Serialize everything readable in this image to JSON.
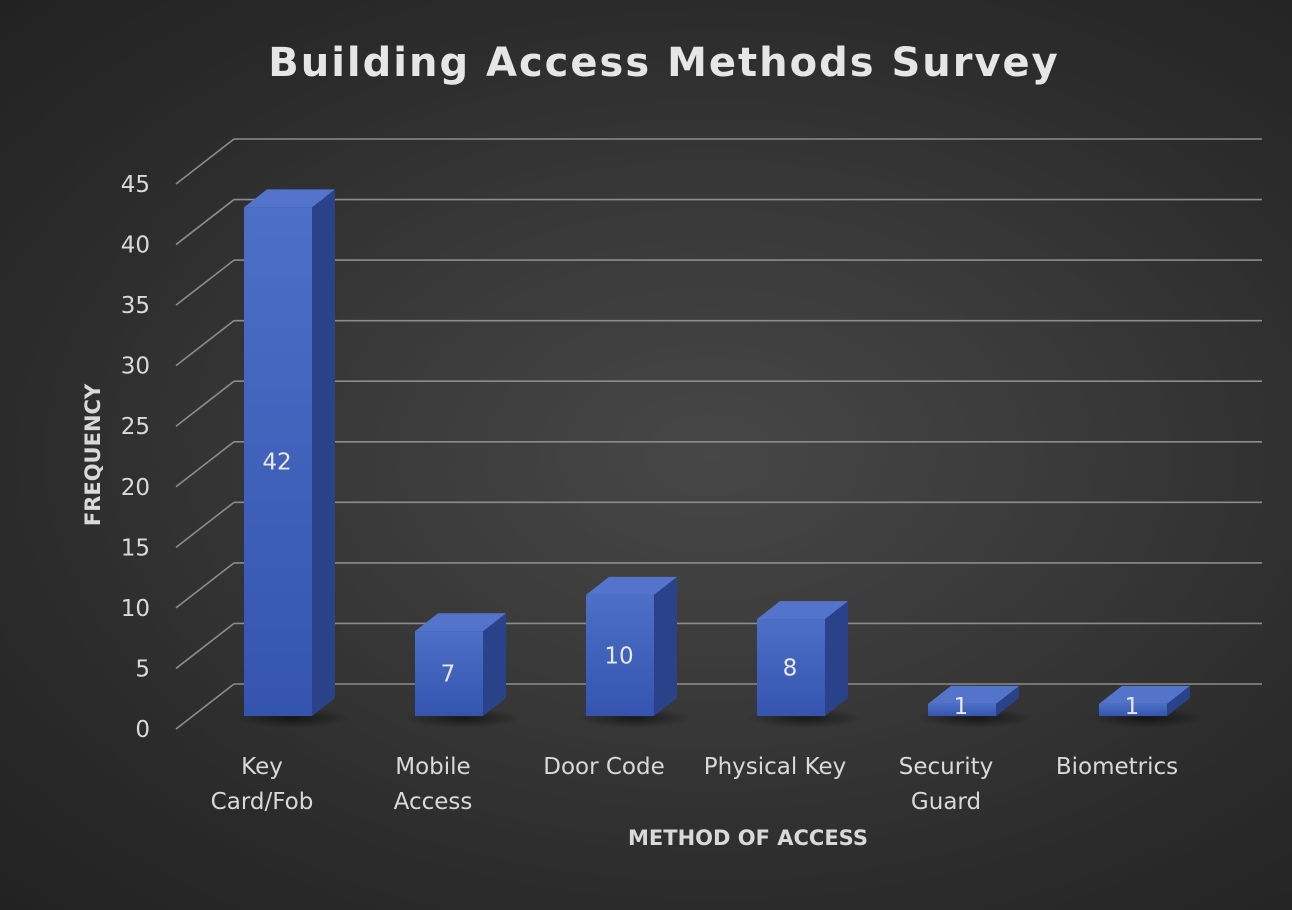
{
  "chart_data": {
    "type": "bar",
    "title": "Building Access Methods Survey",
    "xlabel": "METHOD OF ACCESS",
    "ylabel": "FREQUENCY",
    "categories": [
      [
        "Key",
        "Card/Fob"
      ],
      [
        "Mobile",
        "Access"
      ],
      [
        "Door Code"
      ],
      [
        "Physical Key"
      ],
      [
        "Security",
        "Guard"
      ],
      [
        "Biometrics"
      ]
    ],
    "values": [
      42,
      7,
      10,
      8,
      1,
      1
    ],
    "ylim": [
      0,
      45
    ],
    "yticks": [
      0,
      5,
      10,
      15,
      20,
      25,
      30,
      35,
      40,
      45
    ],
    "grid": true,
    "three_d": true,
    "data_labels": true,
    "legend": "none",
    "colors": {
      "bar_front": "#3d5eb8",
      "bar_side": "#2a4289",
      "bar_top": "#5474cc",
      "gridline": "#8c8c8c",
      "text": "#d9d9d9"
    }
  }
}
